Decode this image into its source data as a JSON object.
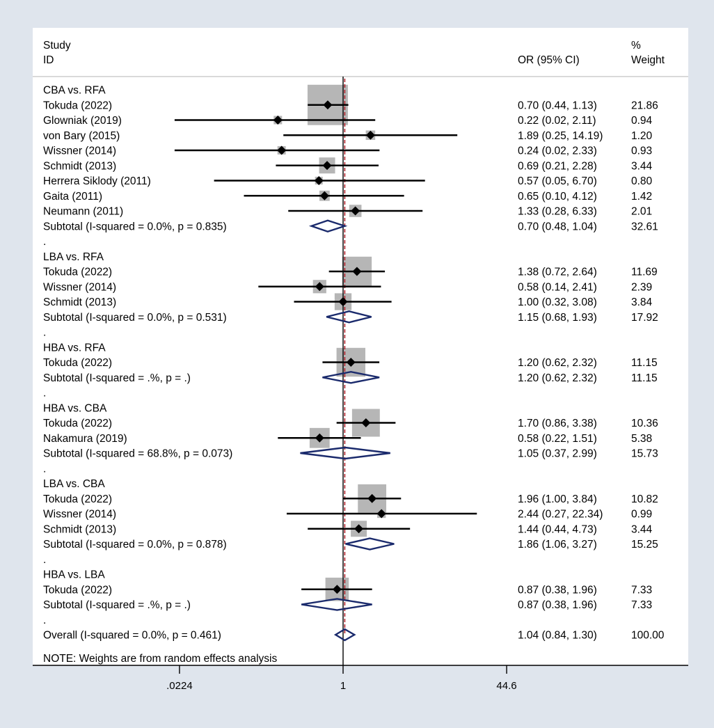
{
  "chart_data": {
    "type": "forest",
    "header": {
      "study_line1": "Study",
      "study_line2": "ID",
      "or_header": "OR (95% CI)",
      "weight_line1": "%",
      "weight_line2": "Weight"
    },
    "x_scale": "log",
    "xlim": [
      0.0224,
      44.6
    ],
    "ticks": [
      {
        "value": 0.0224,
        "label": ".0224"
      },
      {
        "value": 1,
        "label": "1"
      },
      {
        "value": 44.6,
        "label": "44.6"
      }
    ],
    "null_line": 1,
    "overall_effect": 1.04,
    "rows": [
      {
        "type": "group",
        "label": "CBA vs. RFA"
      },
      {
        "type": "study",
        "label": "Tokuda (2022)",
        "or": 0.7,
        "lo": 0.44,
        "hi": 1.13,
        "ci_text": "0.70 (0.44, 1.13)",
        "weight": 21.86,
        "weight_text": "21.86"
      },
      {
        "type": "study",
        "label": "Glowniak (2019)",
        "or": 0.22,
        "lo": 0.02,
        "hi": 2.11,
        "ci_text": "0.22 (0.02, 2.11)",
        "weight": 0.94,
        "weight_text": "0.94"
      },
      {
        "type": "study",
        "label": "von Bary (2015)",
        "or": 1.89,
        "lo": 0.25,
        "hi": 14.19,
        "ci_text": "1.89 (0.25, 14.19)",
        "weight": 1.2,
        "weight_text": "1.20"
      },
      {
        "type": "study",
        "label": "Wissner (2014)",
        "or": 0.24,
        "lo": 0.02,
        "hi": 2.33,
        "ci_text": "0.24 (0.02, 2.33)",
        "weight": 0.93,
        "weight_text": "0.93"
      },
      {
        "type": "study",
        "label": "Schmidt (2013)",
        "or": 0.69,
        "lo": 0.21,
        "hi": 2.28,
        "ci_text": "0.69 (0.21, 2.28)",
        "weight": 3.44,
        "weight_text": "3.44"
      },
      {
        "type": "study",
        "label": "Herrera Siklody (2011)",
        "or": 0.57,
        "lo": 0.05,
        "hi": 6.7,
        "ci_text": "0.57 (0.05, 6.70)",
        "weight": 0.8,
        "weight_text": "0.80"
      },
      {
        "type": "study",
        "label": "Gaita (2011)",
        "or": 0.65,
        "lo": 0.1,
        "hi": 4.12,
        "ci_text": "0.65 (0.10, 4.12)",
        "weight": 1.42,
        "weight_text": "1.42"
      },
      {
        "type": "study",
        "label": "Neumann (2011)",
        "or": 1.33,
        "lo": 0.28,
        "hi": 6.33,
        "ci_text": "1.33 (0.28, 6.33)",
        "weight": 2.01,
        "weight_text": "2.01"
      },
      {
        "type": "subtotal",
        "label": "Subtotal  (I-squared = 0.0%, p = 0.835)",
        "or": 0.7,
        "lo": 0.48,
        "hi": 1.04,
        "ci_text": "0.70 (0.48, 1.04)",
        "weight_text": "32.61"
      },
      {
        "type": "dot",
        "label": "."
      },
      {
        "type": "group",
        "label": "LBA vs. RFA"
      },
      {
        "type": "study",
        "label": "Tokuda (2022)",
        "or": 1.38,
        "lo": 0.72,
        "hi": 2.64,
        "ci_text": "1.38 (0.72, 2.64)",
        "weight": 11.69,
        "weight_text": "11.69"
      },
      {
        "type": "study",
        "label": "Wissner (2014)",
        "or": 0.58,
        "lo": 0.14,
        "hi": 2.41,
        "ci_text": "0.58 (0.14, 2.41)",
        "weight": 2.39,
        "weight_text": "2.39"
      },
      {
        "type": "study",
        "label": "Schmidt (2013)",
        "or": 1.0,
        "lo": 0.32,
        "hi": 3.08,
        "ci_text": "1.00 (0.32, 3.08)",
        "weight": 3.84,
        "weight_text": "3.84"
      },
      {
        "type": "subtotal",
        "label": "Subtotal  (I-squared = 0.0%, p = 0.531)",
        "or": 1.15,
        "lo": 0.68,
        "hi": 1.93,
        "ci_text": "1.15 (0.68, 1.93)",
        "weight_text": "17.92"
      },
      {
        "type": "dot",
        "label": "."
      },
      {
        "type": "group",
        "label": "HBA vs. RFA"
      },
      {
        "type": "study",
        "label": "Tokuda (2022)",
        "or": 1.2,
        "lo": 0.62,
        "hi": 2.32,
        "ci_text": "1.20 (0.62, 2.32)",
        "weight": 11.15,
        "weight_text": "11.15"
      },
      {
        "type": "subtotal",
        "label": "Subtotal  (I-squared = .%, p = .)",
        "or": 1.2,
        "lo": 0.62,
        "hi": 2.32,
        "ci_text": "1.20 (0.62, 2.32)",
        "weight_text": "11.15"
      },
      {
        "type": "dot",
        "label": "."
      },
      {
        "type": "group",
        "label": "HBA vs. CBA"
      },
      {
        "type": "study",
        "label": "Tokuda (2022)",
        "or": 1.7,
        "lo": 0.86,
        "hi": 3.38,
        "ci_text": "1.70 (0.86, 3.38)",
        "weight": 10.36,
        "weight_text": "10.36"
      },
      {
        "type": "study",
        "label": "Nakamura (2019)",
        "or": 0.58,
        "lo": 0.22,
        "hi": 1.51,
        "ci_text": "0.58 (0.22, 1.51)",
        "weight": 5.38,
        "weight_text": "5.38"
      },
      {
        "type": "subtotal",
        "label": "Subtotal  (I-squared = 68.8%, p = 0.073)",
        "or": 1.05,
        "lo": 0.37,
        "hi": 2.99,
        "ci_text": "1.05 (0.37, 2.99)",
        "weight_text": "15.73"
      },
      {
        "type": "dot",
        "label": "."
      },
      {
        "type": "group",
        "label": "LBA vs. CBA"
      },
      {
        "type": "study",
        "label": "Tokuda (2022)",
        "or": 1.96,
        "lo": 1.0,
        "hi": 3.84,
        "ci_text": "1.96 (1.00, 3.84)",
        "weight": 10.82,
        "weight_text": "10.82"
      },
      {
        "type": "study",
        "label": "Wissner (2014)",
        "or": 2.44,
        "lo": 0.27,
        "hi": 22.34,
        "ci_text": "2.44 (0.27, 22.34)",
        "weight": 0.99,
        "weight_text": "0.99"
      },
      {
        "type": "study",
        "label": "Schmidt (2013)",
        "or": 1.44,
        "lo": 0.44,
        "hi": 4.73,
        "ci_text": "1.44 (0.44, 4.73)",
        "weight": 3.44,
        "weight_text": "3.44"
      },
      {
        "type": "subtotal",
        "label": "Subtotal  (I-squared = 0.0%, p = 0.878)",
        "or": 1.86,
        "lo": 1.06,
        "hi": 3.27,
        "ci_text": "1.86 (1.06, 3.27)",
        "weight_text": "15.25"
      },
      {
        "type": "dot",
        "label": "."
      },
      {
        "type": "group",
        "label": "HBA vs. LBA"
      },
      {
        "type": "study",
        "label": "Tokuda (2022)",
        "or": 0.87,
        "lo": 0.38,
        "hi": 1.96,
        "ci_text": "0.87 (0.38, 1.96)",
        "weight": 7.33,
        "weight_text": "7.33"
      },
      {
        "type": "subtotal",
        "label": "Subtotal  (I-squared = .%, p = .)",
        "or": 0.87,
        "lo": 0.38,
        "hi": 1.96,
        "ci_text": "0.87 (0.38, 1.96)",
        "weight_text": "7.33"
      },
      {
        "type": "dot",
        "label": "."
      },
      {
        "type": "overall",
        "label": "Overall  (I-squared = 0.0%, p = 0.461)",
        "or": 1.04,
        "lo": 0.84,
        "hi": 1.3,
        "ci_text": "1.04 (0.84, 1.30)",
        "weight_text": "100.00"
      }
    ],
    "note": "NOTE: Weights are from random effects analysis"
  }
}
